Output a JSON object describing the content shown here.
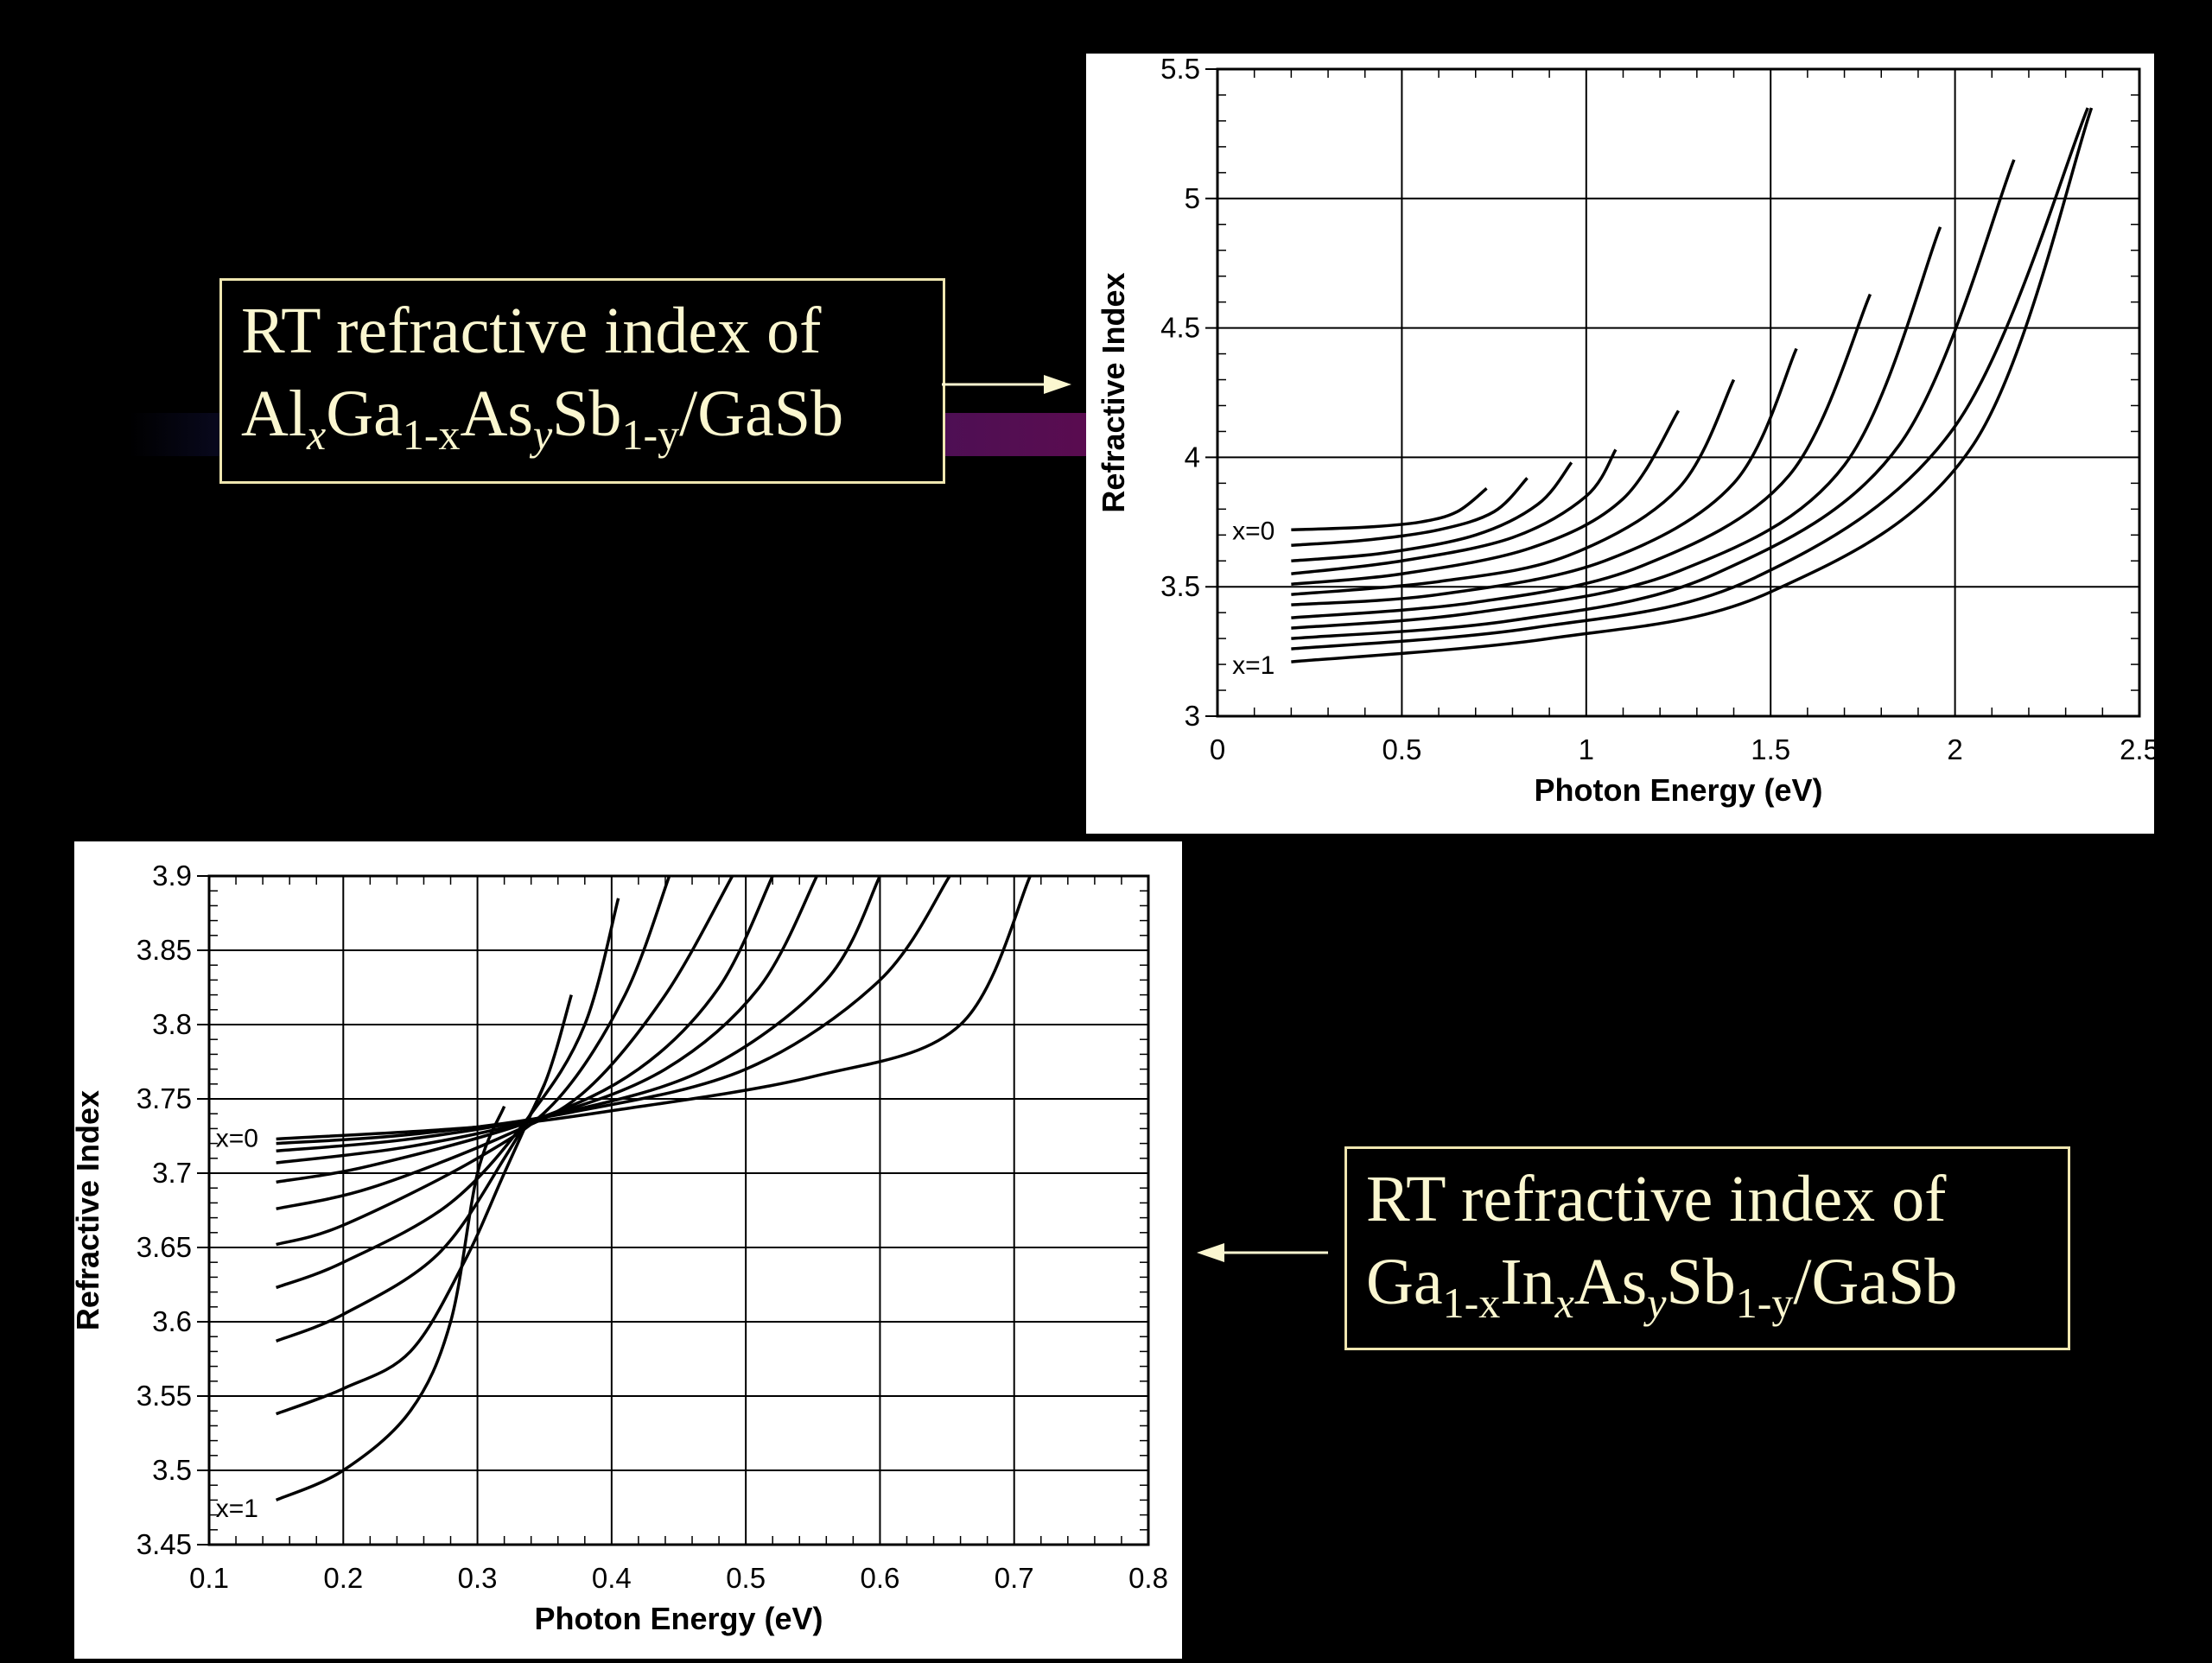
{
  "callouts": [
    {
      "line1": "RT refractive index of",
      "parts": [
        "Al",
        "x",
        "Ga",
        "1-x",
        "As",
        "y",
        "Sb",
        "1-y",
        "/GaSb"
      ]
    },
    {
      "line1": "RT refractive index of",
      "parts": [
        "Ga",
        "1-x",
        "In",
        "x",
        "As",
        "y",
        "Sb",
        "1-y",
        "/GaSb"
      ]
    }
  ],
  "chart_data": [
    {
      "type": "line",
      "xlabel": "Photon Energy (eV)",
      "ylabel": "Refractive Index",
      "xlim": [
        0,
        2.5
      ],
      "ylim": [
        3,
        5.5
      ],
      "xticks": [
        0,
        0.5,
        1,
        1.5,
        2,
        2.5
      ],
      "xticklabels": [
        "0",
        "0.5",
        "1",
        "1.5",
        "2",
        "2.5"
      ],
      "yticks": [
        3,
        3.5,
        4,
        4.5,
        5,
        5.5
      ],
      "yticklabels": [
        "3",
        "3.5",
        "4",
        "4.5",
        "5",
        "5.5"
      ],
      "grid": true,
      "annotations": [
        {
          "text": "x=0",
          "x": 0.04,
          "y": 3.72
        },
        {
          "text": "x=1",
          "x": 0.04,
          "y": 3.2
        }
      ],
      "series": [
        {
          "values": [
            [
              0.2,
              3.72
            ],
            [
              0.4,
              3.73
            ],
            [
              0.55,
              3.75
            ],
            [
              0.65,
              3.79
            ],
            [
              0.73,
              3.88
            ]
          ]
        },
        {
          "values": [
            [
              0.2,
              3.66
            ],
            [
              0.4,
              3.68
            ],
            [
              0.6,
              3.72
            ],
            [
              0.75,
              3.79
            ],
            [
              0.84,
              3.92
            ]
          ]
        },
        {
          "values": [
            [
              0.2,
              3.6
            ],
            [
              0.45,
              3.63
            ],
            [
              0.7,
              3.7
            ],
            [
              0.87,
              3.82
            ],
            [
              0.96,
              3.98
            ]
          ]
        },
        {
          "values": [
            [
              0.2,
              3.55
            ],
            [
              0.5,
              3.6
            ],
            [
              0.8,
              3.69
            ],
            [
              1.0,
              3.85
            ],
            [
              1.08,
              4.03
            ]
          ]
        },
        {
          "values": [
            [
              0.2,
              3.51
            ],
            [
              0.5,
              3.55
            ],
            [
              0.85,
              3.65
            ],
            [
              1.1,
              3.84
            ],
            [
              1.25,
              4.18
            ]
          ]
        },
        {
          "values": [
            [
              0.2,
              3.47
            ],
            [
              0.6,
              3.52
            ],
            [
              0.95,
              3.62
            ],
            [
              1.25,
              3.88
            ],
            [
              1.4,
              4.3
            ]
          ]
        },
        {
          "values": [
            [
              0.2,
              3.43
            ],
            [
              0.6,
              3.47
            ],
            [
              1.05,
              3.6
            ],
            [
              1.4,
              3.9
            ],
            [
              1.57,
              4.42
            ]
          ]
        },
        {
          "values": [
            [
              0.2,
              3.38
            ],
            [
              0.7,
              3.44
            ],
            [
              1.15,
              3.58
            ],
            [
              1.55,
              3.93
            ],
            [
              1.77,
              4.63
            ]
          ]
        },
        {
          "values": [
            [
              0.2,
              3.34
            ],
            [
              0.7,
              3.4
            ],
            [
              1.25,
              3.56
            ],
            [
              1.7,
              3.97
            ],
            [
              1.96,
              4.89
            ]
          ]
        },
        {
          "values": [
            [
              0.2,
              3.3
            ],
            [
              0.8,
              3.37
            ],
            [
              1.35,
              3.55
            ],
            [
              1.85,
              4.05
            ],
            [
              2.16,
              5.15
            ]
          ]
        },
        {
          "values": [
            [
              0.2,
              3.26
            ],
            [
              0.85,
              3.34
            ],
            [
              1.45,
              3.53
            ],
            [
              2.0,
              4.12
            ],
            [
              2.36,
              5.35
            ]
          ]
        },
        {
          "values": [
            [
              0.2,
              3.21
            ],
            [
              0.9,
              3.3
            ],
            [
              1.5,
              3.48
            ],
            [
              2.05,
              4.05
            ],
            [
              2.37,
              5.35
            ]
          ]
        }
      ]
    },
    {
      "type": "line",
      "xlabel": "Photon Energy (eV)",
      "ylabel": "Refractive Index",
      "xlim": [
        0.1,
        0.8
      ],
      "ylim": [
        3.45,
        3.9
      ],
      "xticks": [
        0.1,
        0.2,
        0.3,
        0.4,
        0.5,
        0.6,
        0.7,
        0.8
      ],
      "xticklabels": [
        "0.1",
        "0.2",
        "0.3",
        "0.4",
        "0.5",
        "0.6",
        "0.7",
        "0.8"
      ],
      "yticks": [
        3.45,
        3.5,
        3.55,
        3.6,
        3.65,
        3.7,
        3.75,
        3.8,
        3.85,
        3.9
      ],
      "yticklabels": [
        "3.45",
        "3.5",
        "3.55",
        "3.6",
        "3.65",
        "3.7",
        "3.75",
        "3.8",
        "3.85",
        "3.9"
      ],
      "grid": true,
      "annotations": [
        {
          "text": "x=0",
          "x": 0.105,
          "y": 3.724
        },
        {
          "text": "x=1",
          "x": 0.105,
          "y": 3.475
        }
      ],
      "series": [
        {
          "values": [
            [
              0.15,
              3.48
            ],
            [
              0.2,
              3.5
            ],
            [
              0.25,
              3.54
            ],
            [
              0.28,
              3.6
            ],
            [
              0.3,
              3.7
            ],
            [
              0.32,
              3.745
            ]
          ]
        },
        {
          "values": [
            [
              0.15,
              3.538
            ],
            [
              0.2,
              3.555
            ],
            [
              0.25,
              3.58
            ],
            [
              0.29,
              3.64
            ],
            [
              0.32,
              3.7
            ],
            [
              0.35,
              3.76
            ]
          ]
        },
        {
          "values": [
            [
              0.15,
              3.587
            ],
            [
              0.2,
              3.605
            ],
            [
              0.27,
              3.645
            ],
            [
              0.32,
              3.71
            ],
            [
              0.35,
              3.76
            ],
            [
              0.37,
              3.82
            ]
          ]
        },
        {
          "values": [
            [
              0.15,
              3.623
            ],
            [
              0.2,
              3.64
            ],
            [
              0.28,
              3.68
            ],
            [
              0.34,
              3.74
            ],
            [
              0.38,
              3.8
            ],
            [
              0.405,
              3.885
            ]
          ]
        },
        {
          "values": [
            [
              0.15,
              3.652
            ],
            [
              0.2,
              3.665
            ],
            [
              0.3,
              3.71
            ],
            [
              0.36,
              3.75
            ],
            [
              0.41,
              3.82
            ],
            [
              0.443,
              3.9
            ]
          ]
        },
        {
          "values": [
            [
              0.15,
              3.676
            ],
            [
              0.22,
              3.69
            ],
            [
              0.32,
              3.725
            ],
            [
              0.38,
              3.755
            ],
            [
              0.44,
              3.82
            ],
            [
              0.49,
              3.9
            ]
          ]
        },
        {
          "values": [
            [
              0.15,
              3.694
            ],
            [
              0.22,
              3.705
            ],
            [
              0.34,
              3.735
            ],
            [
              0.42,
              3.77
            ],
            [
              0.48,
              3.825
            ],
            [
              0.52,
              3.9
            ]
          ]
        },
        {
          "values": [
            [
              0.15,
              3.707
            ],
            [
              0.25,
              3.718
            ],
            [
              0.35,
              3.738
            ],
            [
              0.44,
              3.77
            ],
            [
              0.51,
              3.825
            ],
            [
              0.553,
              3.9
            ]
          ]
        },
        {
          "values": [
            [
              0.15,
              3.715
            ],
            [
              0.25,
              3.723
            ],
            [
              0.36,
              3.74
            ],
            [
              0.47,
              3.77
            ],
            [
              0.56,
              3.83
            ],
            [
              0.6,
              3.9
            ]
          ]
        },
        {
          "values": [
            [
              0.15,
              3.72
            ],
            [
              0.25,
              3.726
            ],
            [
              0.37,
              3.741
            ],
            [
              0.5,
              3.77
            ],
            [
              0.6,
              3.83
            ],
            [
              0.652,
              3.9
            ]
          ]
        },
        {
          "values": [
            [
              0.15,
              3.723
            ],
            [
              0.3,
              3.731
            ],
            [
              0.4,
              3.742
            ],
            [
              0.55,
              3.765
            ],
            [
              0.66,
              3.8
            ],
            [
              0.712,
              3.9
            ]
          ]
        }
      ]
    }
  ]
}
